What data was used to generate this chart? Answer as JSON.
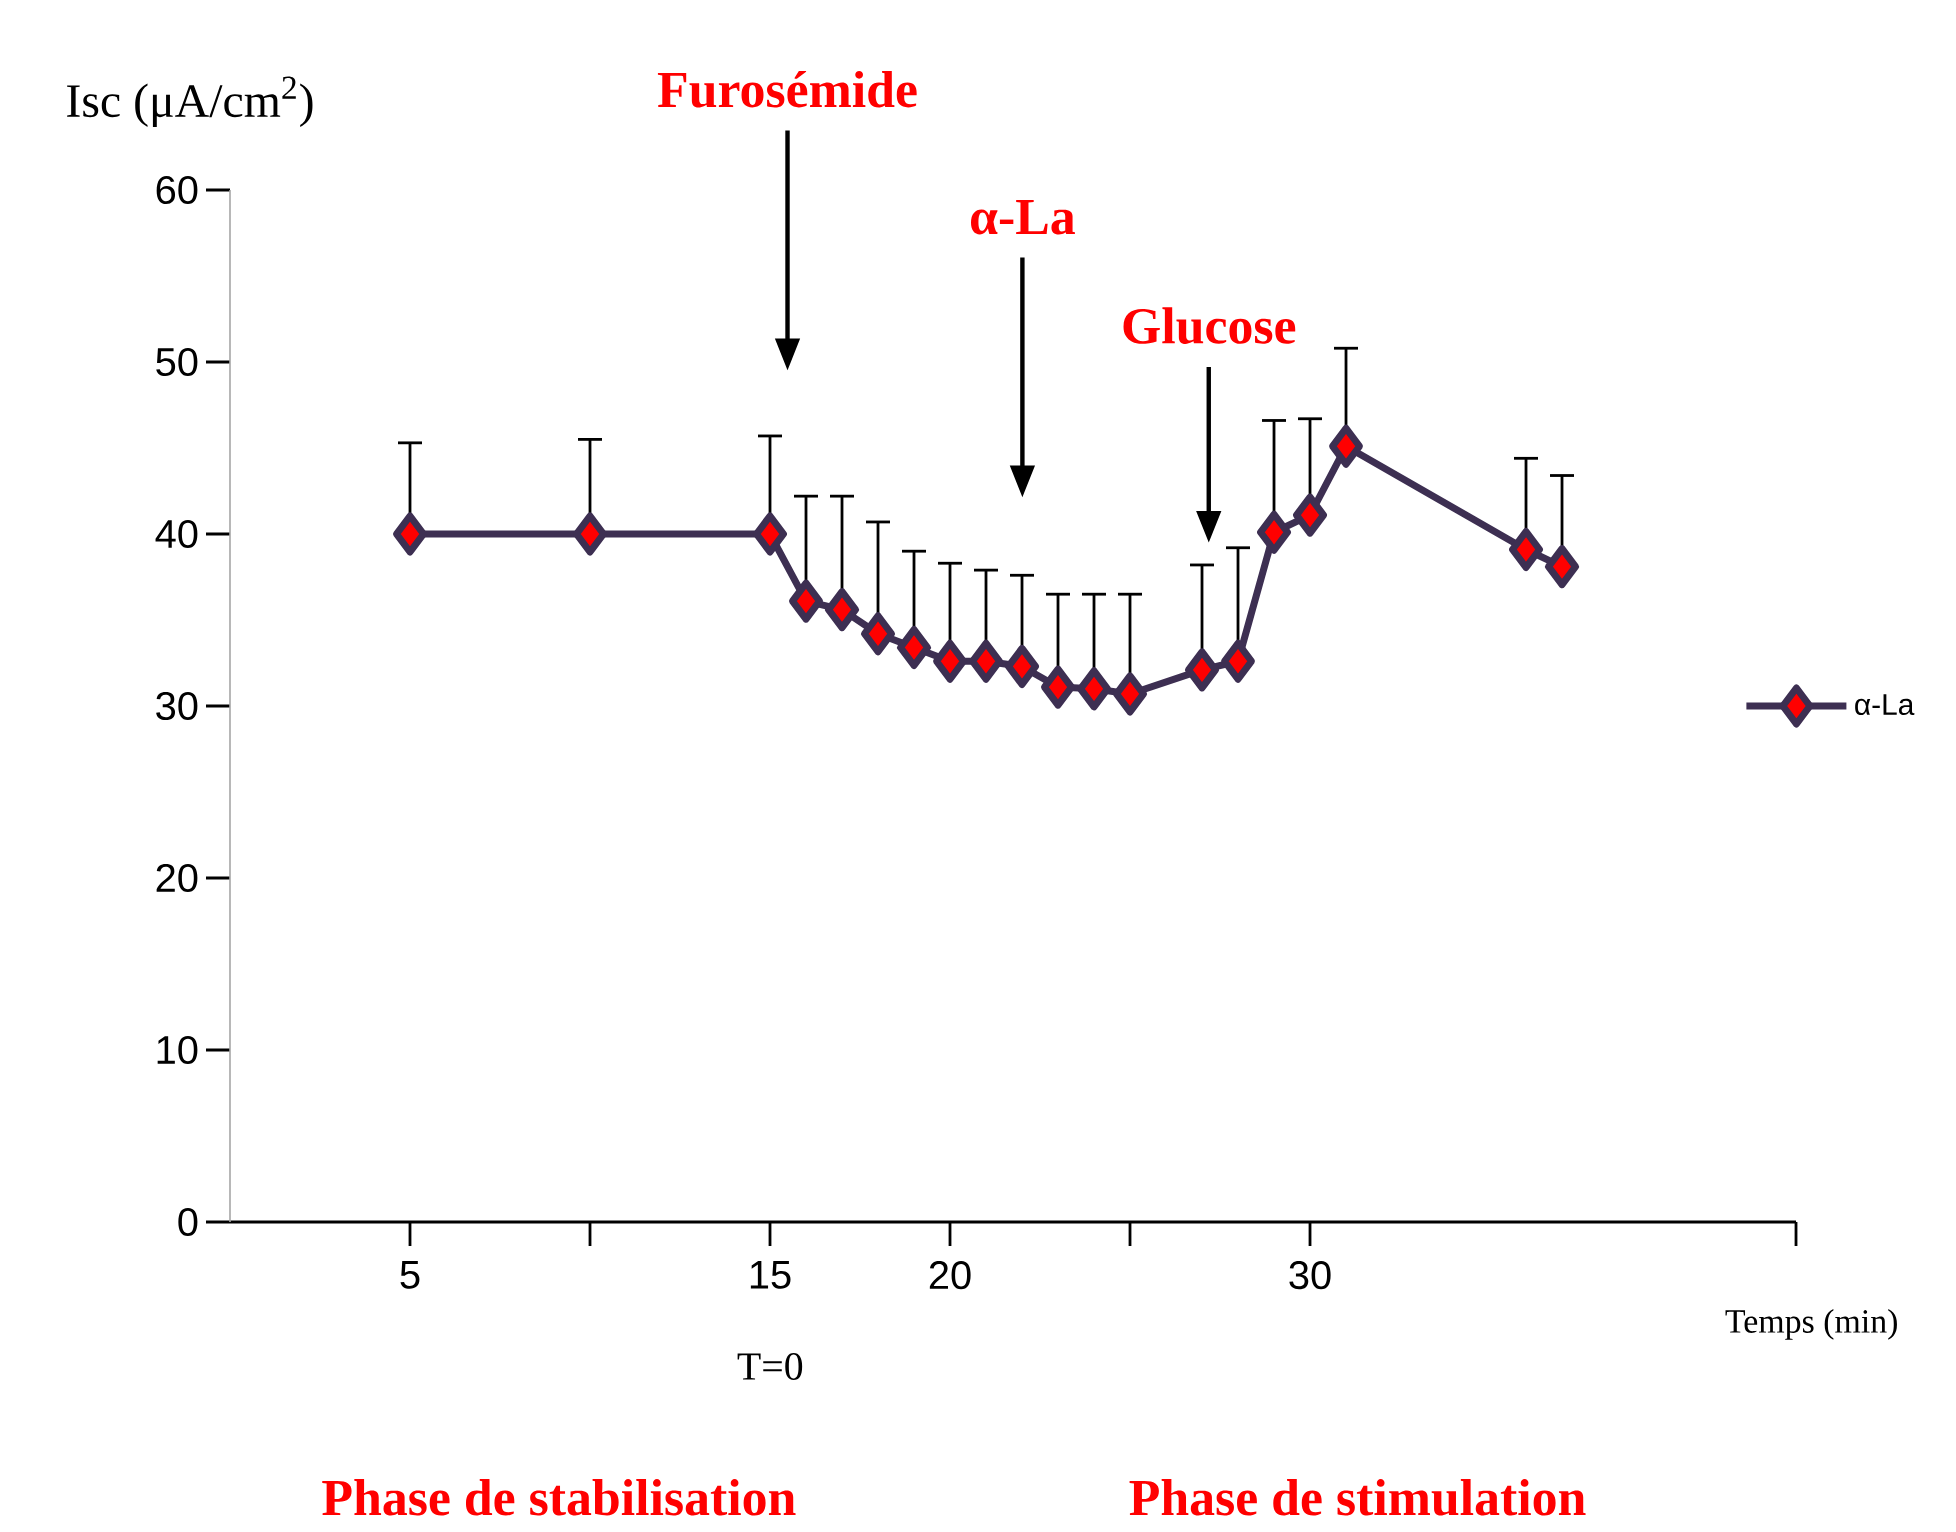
{
  "chart_data": {
    "type": "line",
    "ylabel": "Isc (μA/cm$^{2}$)",
    "xlabel": "Temps (min)",
    "x": [
      5,
      10,
      15,
      16,
      17,
      18,
      19,
      20,
      21,
      22,
      23,
      24,
      25,
      27,
      28,
      29,
      30,
      31,
      36,
      37
    ],
    "series": [
      {
        "name": "α-La",
        "color": "#3d2f52",
        "values": [
          40.0,
          40.0,
          40.0,
          36.1,
          35.6,
          34.2,
          33.4,
          32.6,
          32.6,
          32.3,
          31.1,
          31.0,
          30.7,
          32.1,
          32.6,
          40.1,
          41.1,
          45.1,
          39.1,
          38.1
        ],
        "errors": [
          [
            40.0,
            45.3
          ],
          [
            40.0,
            45.5
          ],
          [
            40.0,
            45.7
          ],
          [
            36.1,
            42.2
          ],
          [
            35.6,
            42.2
          ],
          [
            34.2,
            40.7
          ],
          [
            33.4,
            39.0
          ],
          [
            32.6,
            38.3
          ],
          [
            32.6,
            37.9
          ],
          [
            32.3,
            37.6
          ],
          [
            31.1,
            36.5
          ],
          [
            31.0,
            36.5
          ],
          [
            30.7,
            36.5
          ],
          [
            32.1,
            38.2
          ],
          [
            32.6,
            39.2
          ],
          [
            40.1,
            46.6
          ],
          [
            41.1,
            46.7
          ],
          [
            45.1,
            50.8
          ],
          [
            39.1,
            44.4
          ],
          [
            38.1,
            43.4
          ]
        ]
      }
    ],
    "xlim": [
      0,
      43.5
    ],
    "ylim": [
      0,
      60
    ],
    "xticks": [
      5,
      {
        "value": 10,
        "label": null
      },
      15,
      20,
      {
        "value": 25,
        "label": null
      },
      30,
      {
        "value": 43.5,
        "label": null
      }
    ],
    "yticks": [
      0,
      10,
      20,
      30,
      40,
      50,
      60
    ],
    "marker": "diamond",
    "line_style": "solid",
    "legend": "right",
    "annotations": [
      "Furosémide",
      "α-La",
      "Glucose",
      "T=0",
      "Phase de stabilisation",
      "Phase de stimulation"
    ]
  }
}
